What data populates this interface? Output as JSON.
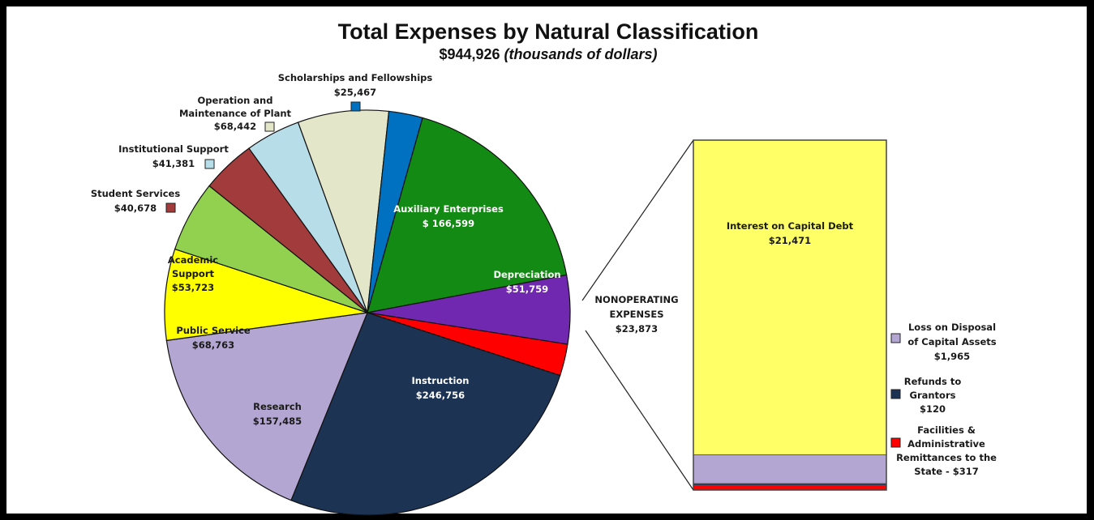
{
  "chart_data": {
    "type": "pie",
    "title": "Total Expenses by Natural Classification",
    "subtitle_amount": "$944,926",
    "subtitle_units": "(thousands of dollars)",
    "slices": [
      {
        "name": "Auxiliary Enterprises",
        "value": 166599,
        "label": "$ 166,599",
        "color": "#138a13"
      },
      {
        "name": "Depreciation",
        "value": 51759,
        "label": "$51,759",
        "color": "#7028b0"
      },
      {
        "name": "NONOPERATING EXPENSES",
        "value": 23873,
        "label": "$23,873",
        "color": "#ff0000"
      },
      {
        "name": "Instruction",
        "value": 246756,
        "label": "$246,756",
        "color": "#1c3354"
      },
      {
        "name": "Research",
        "value": 157485,
        "label": "$157,485",
        "color": "#b4a6d2"
      },
      {
        "name": "Public Service",
        "value": 68763,
        "label": "$68,763",
        "color": "#ffff00"
      },
      {
        "name": "Academic Support",
        "value": 53723,
        "label": "$53,723",
        "color": "#92d050"
      },
      {
        "name": "Student Services",
        "value": 40678,
        "label": "$40,678",
        "color": "#a23b3b"
      },
      {
        "name": "Institutional Support",
        "value": 41381,
        "label": "$41,381",
        "color": "#b7dde8"
      },
      {
        "name": "Operation and Maintenance of Plant",
        "value": 68442,
        "label": "$68,442",
        "color": "#e3e6c8"
      },
      {
        "name": "Scholarships and Fellowships",
        "value": 25467,
        "label": "$25,467",
        "color": "#0070c0"
      }
    ],
    "breakdown": {
      "type": "stacked-bar",
      "name": "NONOPERATING EXPENSES",
      "total": 23873,
      "items": [
        {
          "name": "Interest on Capital Debt",
          "value": 21471,
          "label": "$21,471",
          "color": "#ffff66"
        },
        {
          "name": "Loss on Disposal of Capital Assets",
          "value": 1965,
          "label": "$1,965",
          "color": "#b4a6d2"
        },
        {
          "name": "Refunds to Grantors",
          "value": 120,
          "label": "$120",
          "color": "#1c3354"
        },
        {
          "name": "Facilities & Administrative Remittances to the State",
          "value": 317,
          "label": "$317",
          "color": "#ff0000"
        }
      ]
    }
  },
  "labels": {
    "aux": [
      "Auxiliary Enterprises",
      "$ 166,599"
    ],
    "dep": [
      "Depreciation",
      "$51,759"
    ],
    "nonop": [
      "NONOPERATING",
      "EXPENSES",
      "$23,873"
    ],
    "inst": [
      "Instruction",
      "$246,756"
    ],
    "res": [
      "Research",
      "$157,485"
    ],
    "pub": [
      "Public Service",
      "$68,763"
    ],
    "acad": [
      "Academic",
      "Support",
      "$53,723"
    ],
    "stud": [
      "Student Services",
      "$40,678"
    ],
    "instsup": [
      "Institutional Support",
      "$41,381"
    ],
    "op": [
      "Operation and",
      "Maintenance of Plant",
      "$68,442"
    ],
    "sch": [
      "Scholarships and Fellowships",
      "$25,467"
    ],
    "interest": [
      "Interest on Capital Debt",
      "$21,471"
    ],
    "loss": [
      "Loss on Disposal",
      "of Capital Assets",
      "$1,965"
    ],
    "refunds": [
      "Refunds to",
      "Grantors",
      "$120"
    ],
    "fac": [
      "Facilities &",
      "Administrative",
      "Remittances to the",
      "State -  $317"
    ]
  }
}
